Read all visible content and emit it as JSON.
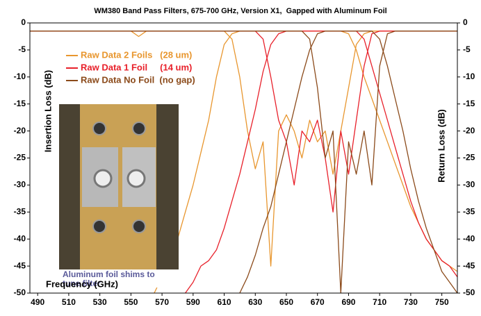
{
  "chart_data": {
    "type": "line",
    "title": "WM380 Band Pass Filters, 675-700 GHz, Version X1,  Gapped with Aluminum Foil",
    "x_label": "Frequency (GHz)",
    "y_label": "Insertion Loss (dB)",
    "y2_label": "Return Loss (dB)",
    "inset_caption": [
      "Aluminum foil shims to",
      "tune filter"
    ],
    "x": [
      485,
      490,
      495,
      500,
      505,
      510,
      515,
      520,
      525,
      530,
      535,
      540,
      545,
      550,
      555,
      560,
      565,
      570,
      575,
      580,
      585,
      590,
      595,
      600,
      605,
      610,
      615,
      620,
      625,
      630,
      635,
      640,
      645,
      650,
      655,
      660,
      665,
      670,
      675,
      680,
      685,
      690,
      695,
      700,
      705,
      710,
      715,
      720,
      725,
      730,
      735,
      740,
      745,
      750,
      755,
      760
    ],
    "xlim": [
      485,
      760
    ],
    "xticks": [
      490,
      510,
      530,
      550,
      570,
      590,
      610,
      630,
      650,
      670,
      690,
      710,
      730,
      750
    ],
    "ylim": [
      -50,
      0
    ],
    "yticks": [
      0,
      -5,
      -10,
      -15,
      -20,
      -25,
      -30,
      -35,
      -40,
      -45,
      -50
    ],
    "y2lim": [
      -50,
      0
    ],
    "y2ticks": [
      0,
      -5,
      -10,
      -15,
      -20,
      -25,
      -30,
      -35,
      -40,
      -45,
      -50
    ],
    "series": [
      {
        "name": "Raw Data 2 Foils   (28 um)",
        "color": "#e8962e",
        "values": [
          null,
          null,
          null,
          null,
          null,
          null,
          null,
          null,
          null,
          null,
          null,
          null,
          null,
          null,
          null,
          null,
          -50,
          -47,
          -44,
          -40,
          -35,
          -30,
          -24,
          -18,
          -10,
          -4,
          -2,
          -1.5,
          -1.5,
          -1.5,
          -1.5,
          -1.5,
          -1.5,
          -1.5,
          -1.5,
          -1.5,
          -1.5,
          -1.5,
          -1.5,
          -1.5,
          -1.5,
          -2,
          -5,
          -10,
          -14,
          -18,
          -22,
          -26,
          -30,
          -34,
          -37,
          -40,
          -42,
          -44,
          -45,
          -46
        ],
        "return_values": [
          -1.5,
          -1.5,
          -1.5,
          -1.5,
          -1.5,
          -1.5,
          -1.5,
          -1.5,
          -1.5,
          -1.5,
          -1.5,
          -1.5,
          -1.5,
          -1.5,
          -2.5,
          -1.5,
          -1.5,
          -1.5,
          -1.5,
          -1.5,
          -1.5,
          -1.5,
          -1.5,
          -1.5,
          -1.5,
          -1.5,
          -3,
          -10,
          -20,
          -27,
          -22,
          -45,
          -20,
          -17,
          -20,
          -25,
          -18,
          -22,
          -20,
          -28,
          -20,
          -12,
          -4,
          -2,
          -1.5,
          -1.5,
          -1.5,
          -1.5,
          -1.5,
          -1.5,
          -1.5,
          -1.5,
          -1.5,
          -1.5,
          -1.5,
          -1.5
        ]
      },
      {
        "name": "Raw Data 1 Foil     (14 um)",
        "color": "#e8202a",
        "values": [
          null,
          null,
          null,
          null,
          null,
          null,
          null,
          null,
          null,
          null,
          null,
          null,
          null,
          null,
          null,
          null,
          null,
          null,
          null,
          null,
          -50,
          -48,
          -45,
          -44,
          -42,
          -38,
          -33,
          -28,
          -22,
          -16,
          -9,
          -4,
          -2,
          -1.5,
          -1.5,
          -1.5,
          -1.5,
          -1.5,
          -1.5,
          -1.5,
          -1.5,
          -1.5,
          -1.5,
          -3,
          -8,
          -13,
          -18,
          -23,
          -28,
          -33,
          -37,
          -40,
          -42,
          -44,
          -45,
          -47
        ],
        "return_values": [
          -1.5,
          -1.5,
          -1.5,
          -1.5,
          -1.5,
          -1.5,
          -1.5,
          -1.5,
          -1.5,
          -1.5,
          -1.5,
          -1.5,
          -1.5,
          -1.5,
          -1.5,
          -1.5,
          -1.5,
          -1.5,
          -1.5,
          -1.5,
          -1.5,
          -1.5,
          -1.5,
          -1.5,
          -1.5,
          -1.5,
          -1.5,
          -1.5,
          -1.5,
          -1.5,
          -3,
          -10,
          -18,
          -22,
          -30,
          -20,
          -22,
          -18,
          -25,
          -35,
          -20,
          -28,
          -18,
          -8,
          -2,
          -1.5,
          -1.5,
          -1.5,
          -1.5,
          -1.5,
          -1.5,
          -1.5,
          -1.5,
          -1.5,
          -1.5,
          -1.5
        ]
      },
      {
        "name": "Raw Data No Foil  (no gap)",
        "color": "#8b4a1a",
        "values": [
          null,
          null,
          null,
          null,
          null,
          null,
          null,
          null,
          null,
          null,
          null,
          null,
          null,
          null,
          null,
          null,
          null,
          null,
          null,
          null,
          null,
          null,
          null,
          null,
          null,
          null,
          null,
          -50,
          -47,
          -43,
          -38,
          -34,
          -28,
          -22,
          -16,
          -10,
          -5,
          -2,
          -1.5,
          -1.5,
          -1.5,
          -1.5,
          -1.5,
          -1.5,
          -1.5,
          -3,
          -8,
          -14,
          -20,
          -27,
          -33,
          -38,
          -42,
          -46,
          -48,
          -50
        ],
        "return_values": [
          -1.5,
          -1.5,
          -1.5,
          -1.5,
          -1.5,
          -1.5,
          -1.5,
          -1.5,
          -1.5,
          -1.5,
          -1.5,
          -1.5,
          -1.5,
          -1.5,
          -1.5,
          -1.5,
          -1.5,
          -1.5,
          -1.5,
          -1.5,
          -1.5,
          -1.5,
          -1.5,
          -1.5,
          -1.5,
          -1.5,
          -1.5,
          -1.5,
          -1.5,
          -1.5,
          -1.5,
          -1.5,
          -1.5,
          -1.5,
          -1.5,
          -1.5,
          -3,
          -12,
          -25,
          -20,
          -50,
          -22,
          -28,
          -20,
          -30,
          -8,
          -2,
          -1.5,
          -1.5,
          -1.5,
          -1.5,
          -1.5,
          -1.5,
          -1.5,
          -1.5,
          -1.5
        ]
      }
    ]
  }
}
